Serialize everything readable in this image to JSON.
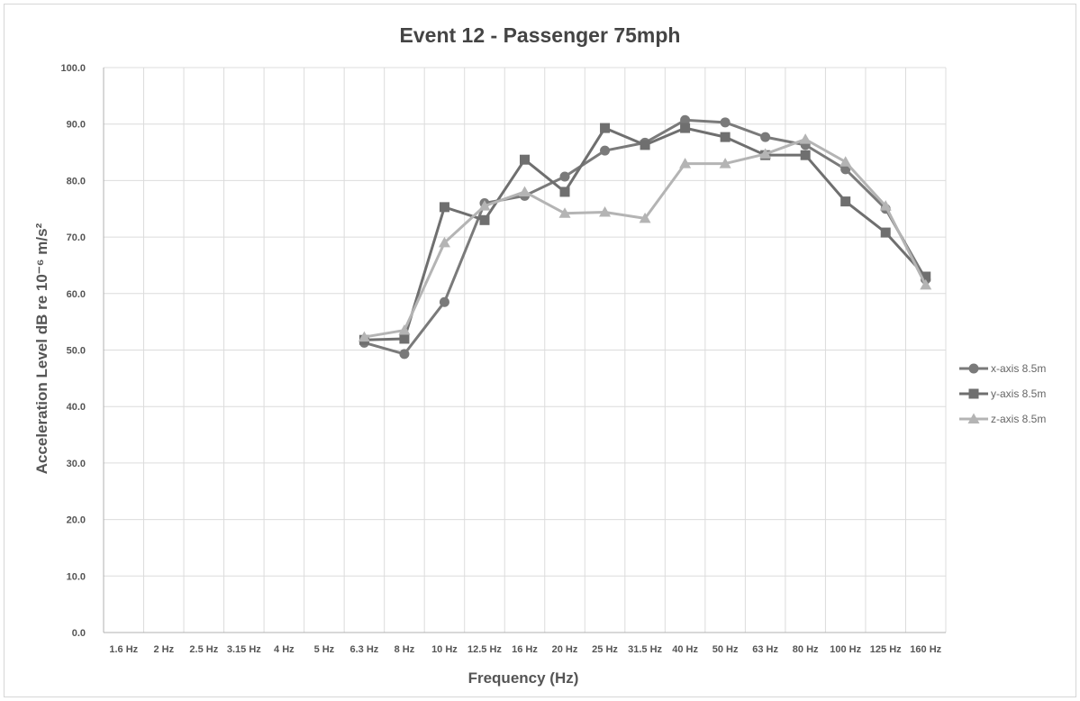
{
  "chart_data": {
    "type": "line",
    "title": "Event 12 - Passenger 75mph",
    "xlabel": "Frequency (Hz)",
    "ylabel": "Acceleration Level dB re 10⁻⁶ m/s²",
    "ylim": [
      0,
      100
    ],
    "yticks": [
      "0.0",
      "10.0",
      "20.0",
      "30.0",
      "40.0",
      "50.0",
      "60.0",
      "70.0",
      "80.0",
      "90.0",
      "100.0"
    ],
    "categories": [
      "1.6 Hz",
      "2 Hz",
      "2.5 Hz",
      "3.15 Hz",
      "4 Hz",
      "5 Hz",
      "6.3 Hz",
      "8 Hz",
      "10 Hz",
      "12.5 Hz",
      "16 Hz",
      "20 Hz",
      "25 Hz",
      "31.5 Hz",
      "40 Hz",
      "50 Hz",
      "63 Hz",
      "80 Hz",
      "100 Hz",
      "125 Hz",
      "160 Hz"
    ],
    "grid": true,
    "legend_position": "right",
    "series": [
      {
        "name": "x-axis 8.5m",
        "marker": "circle",
        "color": "#7a7a7a",
        "values": [
          null,
          null,
          null,
          null,
          null,
          null,
          51.3,
          49.3,
          58.5,
          76.0,
          77.3,
          80.7,
          85.3,
          86.7,
          90.7,
          90.3,
          87.7,
          86.3,
          82.0,
          75.0,
          62.5
        ]
      },
      {
        "name": "y-axis 8.5m",
        "marker": "square",
        "color": "#6f6f6f",
        "values": [
          null,
          null,
          null,
          null,
          null,
          null,
          51.8,
          52.0,
          75.3,
          73.0,
          83.7,
          78.0,
          89.3,
          86.3,
          89.3,
          87.7,
          84.5,
          84.5,
          76.3,
          70.8,
          63.0
        ]
      },
      {
        "name": "z-axis 8.5m",
        "marker": "triangle",
        "color": "#b4b4b4",
        "values": [
          null,
          null,
          null,
          null,
          null,
          null,
          52.3,
          53.5,
          69.0,
          75.5,
          78.0,
          74.2,
          74.4,
          73.3,
          83.0,
          83.0,
          84.7,
          87.3,
          83.3,
          75.5,
          61.5
        ]
      }
    ]
  }
}
